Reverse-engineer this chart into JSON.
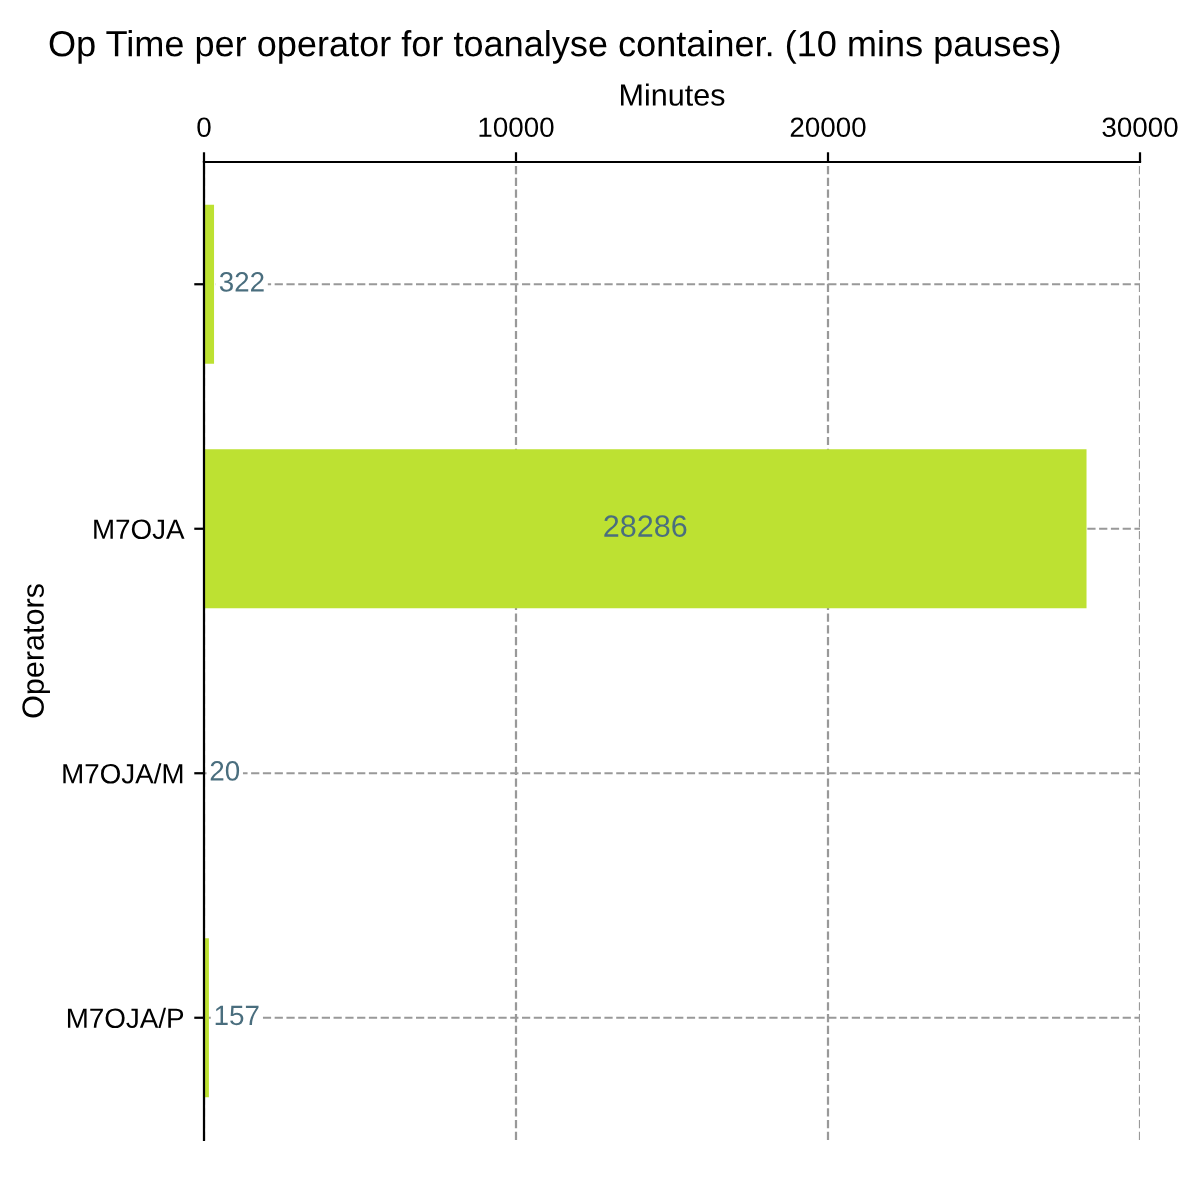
{
  "chart_data": {
    "type": "bar",
    "orientation": "horizontal",
    "title": "Op Time per operator for toanalyse container. (10 mins pauses)",
    "xlabel": "Minutes",
    "ylabel": "Operators",
    "categories": [
      null,
      "M7OJA",
      "M7OJA/M",
      "M7OJA/P"
    ],
    "values": [
      322,
      28286,
      20,
      157
    ],
    "color": "#bde132",
    "xlim": [
      0,
      30000
    ],
    "xticks": [
      0,
      10000,
      20000,
      30000
    ],
    "grid": true,
    "data_labels": true
  }
}
